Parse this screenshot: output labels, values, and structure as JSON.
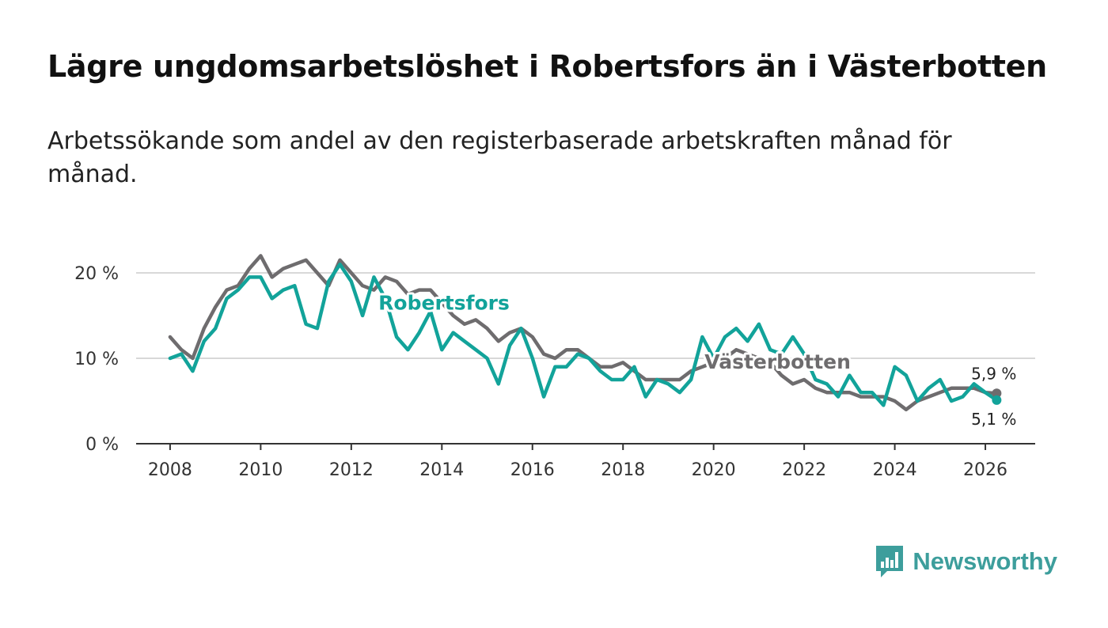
{
  "title": "Lägre ungdomsarbetslöshet i Robertsfors än i Västerbotten",
  "subtitle": "Arbetssökande som andel av den registerbaserade arbetskraften månad för månad.",
  "brand": {
    "name": "Newsworthy",
    "icon": "newsworthy-logo-icon",
    "color": "#3d9e9c"
  },
  "colors": {
    "robertsfors": "#12a39a",
    "vasterbotten": "#6e6c6e",
    "grid": "#d8d8d8",
    "axis": "#333333"
  },
  "chart_data": {
    "type": "line",
    "title": "Lägre ungdomsarbetslöshet i Robertsfors än i Västerbotten",
    "xlabel": "",
    "ylabel": "",
    "xlim": [
      2007.25,
      2027.1
    ],
    "ylim": [
      0,
      20
    ],
    "y_ticks": [
      0,
      10,
      20
    ],
    "y_tick_labels": [
      "0 %",
      "10 %",
      "20 %"
    ],
    "x_ticks": [
      2008,
      2010,
      2012,
      2014,
      2016,
      2018,
      2020,
      2022,
      2024,
      2026
    ],
    "x_tick_labels": [
      "2008",
      "2010",
      "2012",
      "2014",
      "2016",
      "2018",
      "2020",
      "2022",
      "2024",
      "2026"
    ],
    "grid": true,
    "series": [
      {
        "name": "Västerbotten",
        "label_pos": [
          2019.8,
          8.8
        ],
        "end_label": "5,9 %",
        "x": [
          2008.0,
          2008.25,
          2008.5,
          2008.75,
          2009.0,
          2009.25,
          2009.5,
          2009.75,
          2010.0,
          2010.25,
          2010.5,
          2010.75,
          2011.0,
          2011.25,
          2011.5,
          2011.75,
          2012.0,
          2012.25,
          2012.5,
          2012.75,
          2013.0,
          2013.25,
          2013.5,
          2013.75,
          2014.0,
          2014.25,
          2014.5,
          2014.75,
          2015.0,
          2015.25,
          2015.5,
          2015.75,
          2016.0,
          2016.25,
          2016.5,
          2016.75,
          2017.0,
          2017.25,
          2017.5,
          2017.75,
          2018.0,
          2018.25,
          2018.5,
          2018.75,
          2019.0,
          2019.25,
          2019.5,
          2019.75,
          2020.0,
          2020.25,
          2020.5,
          2020.75,
          2021.0,
          2021.25,
          2021.5,
          2021.75,
          2022.0,
          2022.25,
          2022.5,
          2022.75,
          2023.0,
          2023.25,
          2023.5,
          2023.75,
          2024.0,
          2024.25,
          2024.5,
          2024.75,
          2025.0,
          2025.25,
          2025.5,
          2025.75,
          2026.0,
          2026.25
        ],
        "values": [
          12.5,
          11.0,
          10.0,
          13.5,
          16.0,
          18.0,
          18.5,
          20.5,
          22.0,
          19.5,
          20.5,
          21.0,
          21.5,
          20.0,
          18.5,
          21.5,
          20.0,
          18.5,
          18.0,
          19.5,
          19.0,
          17.5,
          18.0,
          18.0,
          16.5,
          15.0,
          14.0,
          14.5,
          13.5,
          12.0,
          13.0,
          13.5,
          12.5,
          10.5,
          10.0,
          11.0,
          11.0,
          10.0,
          9.0,
          9.0,
          9.5,
          8.5,
          7.5,
          7.5,
          7.5,
          7.5,
          8.5,
          9.0,
          9.5,
          10.0,
          11.0,
          10.5,
          10.0,
          9.5,
          8.0,
          7.0,
          7.5,
          6.5,
          6.0,
          6.0,
          6.0,
          5.5,
          5.5,
          5.5,
          5.0,
          4.0,
          5.0,
          5.5,
          6.0,
          6.5,
          6.5,
          6.5,
          6.0,
          5.9
        ]
      },
      {
        "name": "Robertsfors",
        "label_pos": [
          2012.6,
          15.7
        ],
        "end_label": "5,1 %",
        "x": [
          2008.0,
          2008.25,
          2008.5,
          2008.75,
          2009.0,
          2009.25,
          2009.5,
          2009.75,
          2010.0,
          2010.25,
          2010.5,
          2010.75,
          2011.0,
          2011.25,
          2011.5,
          2011.75,
          2012.0,
          2012.25,
          2012.5,
          2012.75,
          2013.0,
          2013.25,
          2013.5,
          2013.75,
          2014.0,
          2014.25,
          2014.5,
          2014.75,
          2015.0,
          2015.25,
          2015.5,
          2015.75,
          2016.0,
          2016.25,
          2016.5,
          2016.75,
          2017.0,
          2017.25,
          2017.5,
          2017.75,
          2018.0,
          2018.25,
          2018.5,
          2018.75,
          2019.0,
          2019.25,
          2019.5,
          2019.75,
          2020.0,
          2020.25,
          2020.5,
          2020.75,
          2021.0,
          2021.25,
          2021.5,
          2021.75,
          2022.0,
          2022.25,
          2022.5,
          2022.75,
          2023.0,
          2023.25,
          2023.5,
          2023.75,
          2024.0,
          2024.25,
          2024.5,
          2024.75,
          2025.0,
          2025.25,
          2025.5,
          2025.75,
          2026.0,
          2026.25
        ],
        "values": [
          10.0,
          10.5,
          8.5,
          12.0,
          13.5,
          17.0,
          18.0,
          19.5,
          19.5,
          17.0,
          18.0,
          18.5,
          14.0,
          13.5,
          19.0,
          21.0,
          19.0,
          15.0,
          19.5,
          17.0,
          12.5,
          11.0,
          13.0,
          15.5,
          11.0,
          13.0,
          12.0,
          11.0,
          10.0,
          7.0,
          11.5,
          13.5,
          10.0,
          5.5,
          9.0,
          9.0,
          10.5,
          10.0,
          8.5,
          7.5,
          7.5,
          9.0,
          5.5,
          7.5,
          7.0,
          6.0,
          7.5,
          12.5,
          10.0,
          12.5,
          13.5,
          12.0,
          14.0,
          11.0,
          10.5,
          12.5,
          10.5,
          7.5,
          7.0,
          5.5,
          8.0,
          6.0,
          6.0,
          4.5,
          9.0,
          8.0,
          5.0,
          6.5,
          7.5,
          5.0,
          5.5,
          7.0,
          6.0,
          5.1
        ]
      }
    ]
  }
}
